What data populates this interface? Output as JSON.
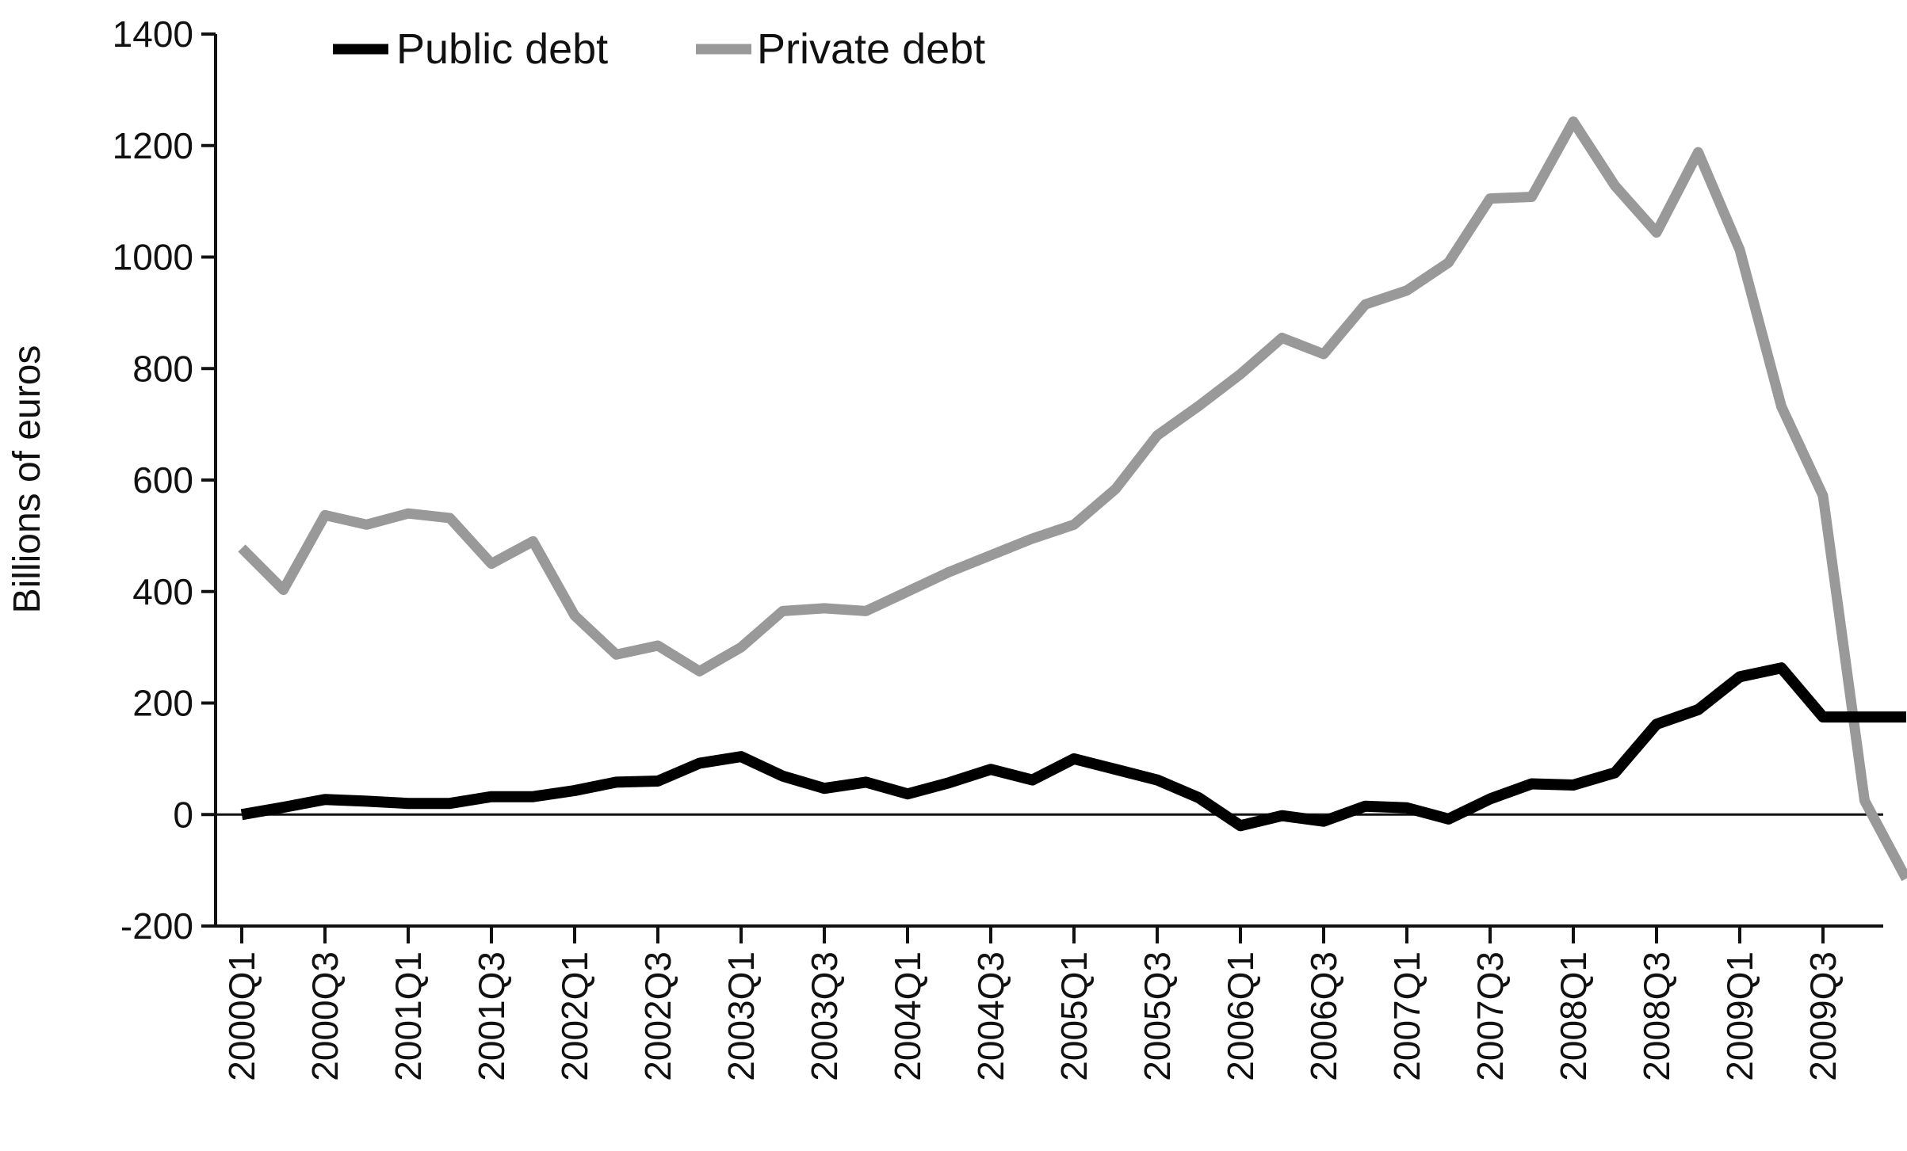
{
  "chart_data": {
    "type": "line",
    "title": "",
    "xlabel": "",
    "ylabel": "Billions of euros",
    "ylim": [
      -200,
      1400
    ],
    "yticks": [
      -200,
      0,
      200,
      400,
      600,
      800,
      1000,
      1200,
      1400
    ],
    "ytick_labels": [
      "-200",
      "0",
      "200",
      "400",
      "600",
      "800",
      "1000",
      "1200",
      "1400"
    ],
    "x": [
      "2000Q1",
      "2000Q2",
      "2000Q3",
      "2000Q4",
      "2001Q1",
      "2001Q2",
      "2001Q3",
      "2001Q4",
      "2002Q1",
      "2002Q2",
      "2002Q3",
      "2002Q4",
      "2003Q1",
      "2003Q2",
      "2003Q3",
      "2003Q4",
      "2004Q1",
      "2004Q2",
      "2004Q3",
      "2004Q4",
      "2005Q1",
      "2005Q2",
      "2005Q3",
      "2005Q4",
      "2006Q1",
      "2006Q2",
      "2006Q3",
      "2006Q4",
      "2007Q1",
      "2007Q2",
      "2007Q3",
      "2007Q4",
      "2008Q1",
      "2008Q2",
      "2008Q3",
      "2008Q4",
      "2009Q1",
      "2009Q2",
      "2009Q3",
      "2009Q4",
      "2010Q1"
    ],
    "x_tick_labels": [
      "2000Q1",
      "2000Q3",
      "2001Q1",
      "2001Q3",
      "2002Q1",
      "2002Q3",
      "2003Q1",
      "2003Q3",
      "2004Q1",
      "2004Q3",
      "2005Q1",
      "2005Q3",
      "2006Q1",
      "2006Q3",
      "2007Q1",
      "2007Q3",
      "2008Q1",
      "2008Q3",
      "2009Q1",
      "2009Q3"
    ],
    "legend_position": "top-left",
    "series": [
      {
        "name": "Public debt",
        "color": "#000000",
        "values": [
          0,
          13,
          27,
          24,
          20,
          20,
          32,
          32,
          43,
          58,
          60,
          92,
          104,
          69,
          47,
          58,
          37,
          57,
          81,
          62,
          100,
          81,
          62,
          30,
          -20,
          -2,
          -12,
          15,
          12,
          -8,
          28,
          55,
          53,
          75,
          162,
          188,
          247,
          263,
          175,
          175,
          175
        ]
      },
      {
        "name": "Private debt",
        "color": "#999999",
        "values": [
          478,
          403,
          537,
          520,
          540,
          532,
          450,
          490,
          357,
          287,
          303,
          257,
          300,
          365,
          370,
          365,
          400,
          435,
          465,
          495,
          520,
          584,
          680,
          733,
          790,
          855,
          826,
          915,
          940,
          990,
          1105,
          1108,
          1243,
          1128,
          1044,
          1188,
          1013,
          732,
          572,
          25,
          -115
        ]
      }
    ]
  }
}
